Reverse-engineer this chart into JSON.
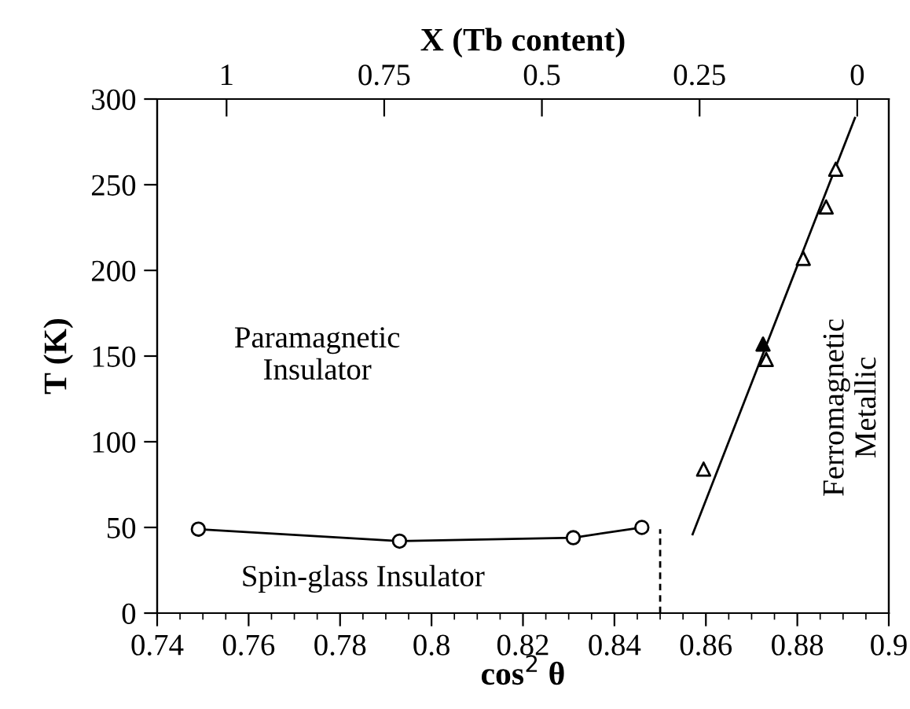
{
  "chart_data": {
    "type": "line",
    "xlabel": "cos$^{2}$ θ",
    "ylabel": "T (K)",
    "x2label": "X (Tb content)",
    "xlim": [
      0.74,
      0.9
    ],
    "xticks": [
      0.74,
      0.76,
      0.78,
      0.8,
      0.82,
      0.84,
      0.86,
      0.88,
      0.9
    ],
    "ylim": [
      0,
      300
    ],
    "yticks": [
      0,
      50,
      100,
      150,
      200,
      250,
      300
    ],
    "x2lim": [
      1.11,
      -0.05
    ],
    "x2ticks": [
      1,
      0.75,
      0.5,
      0.25,
      0
    ],
    "grid": false,
    "legend": false,
    "series": [
      {
        "color": "#000000",
        "marker": "circle",
        "line_style": "solid",
        "x": [
          0.749,
          0.793,
          0.831,
          0.846
        ],
        "values": [
          49,
          42,
          44,
          50
        ]
      },
      {
        "type": "scatter",
        "color": "#000000",
        "marker": "triangle",
        "x": [
          0.8595,
          0.8732,
          0.8725,
          0.8813,
          0.8863,
          0.8884
        ],
        "values": [
          84,
          148,
          157,
          207,
          237,
          259
        ],
        "colors": [
          "#ffffff",
          "#ffffff",
          "#000000",
          "#ffffff",
          "#ffffff",
          "#ffffff"
        ]
      },
      {
        "color": "#000000",
        "marker": "none",
        "line_style": "solid",
        "x": [
          0.8571,
          0.8926
        ],
        "values": [
          46,
          289
        ]
      },
      {
        "color": "#000000",
        "marker": "none",
        "line_style": "dashed",
        "x": [
          0.85,
          0.85
        ],
        "values": [
          0,
          49
        ]
      }
    ],
    "annotations": [
      "Paramagnetic\nInsulator",
      "Spin-glass Insulator",
      "Ferromagnetic\nMetallic"
    ]
  }
}
